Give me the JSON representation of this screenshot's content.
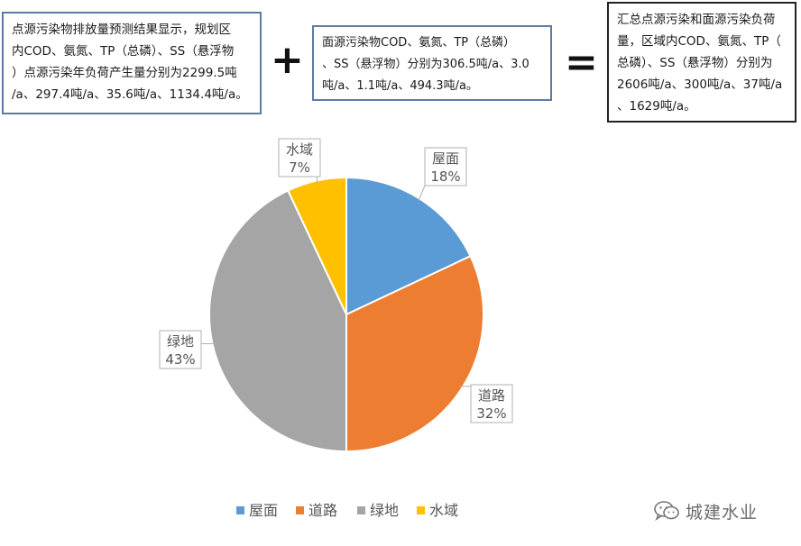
{
  "text_boxes": {
    "point_source": "点源污染物排放量预测结果显示，规划区\n内COD、氨氮、TP（总磷）、SS（悬浮物\n）点源污染年负荷产生量分别为2299.5吨\n/a、297.4吨/a、35.6吨/a、1134.4吨/a。",
    "nonpoint_source": "面源污染物COD、氨氮、TP（总磷）\n、SS（悬浮物）分别为306.5吨/a、3.0\n吨/a、1.1吨/a、494.3吨/a。",
    "total": "汇总点源污染和面源污染负荷\n量，区域内COD、氨氮、TP（\n总磷）、SS（悬浮物）分别为\n2606吨/a、300吨/a、37吨/a\n、1629吨/a。"
  },
  "operators": {
    "plus": "+",
    "equals": "="
  },
  "chart_data": {
    "type": "pie",
    "categories": [
      "屋面",
      "道路",
      "绿地",
      "水域"
    ],
    "values": [
      18,
      32,
      43,
      7
    ],
    "value_labels": [
      "18%",
      "32%",
      "43%",
      "7%"
    ],
    "colors": [
      "#5b9bd5",
      "#ed7d31",
      "#a5a5a5",
      "#ffc000"
    ],
    "start_angle": "12 o'clock, clockwise",
    "legend_position": "bottom"
  },
  "watermark": {
    "text": "城建水业",
    "icon": "wechat-icon"
  }
}
